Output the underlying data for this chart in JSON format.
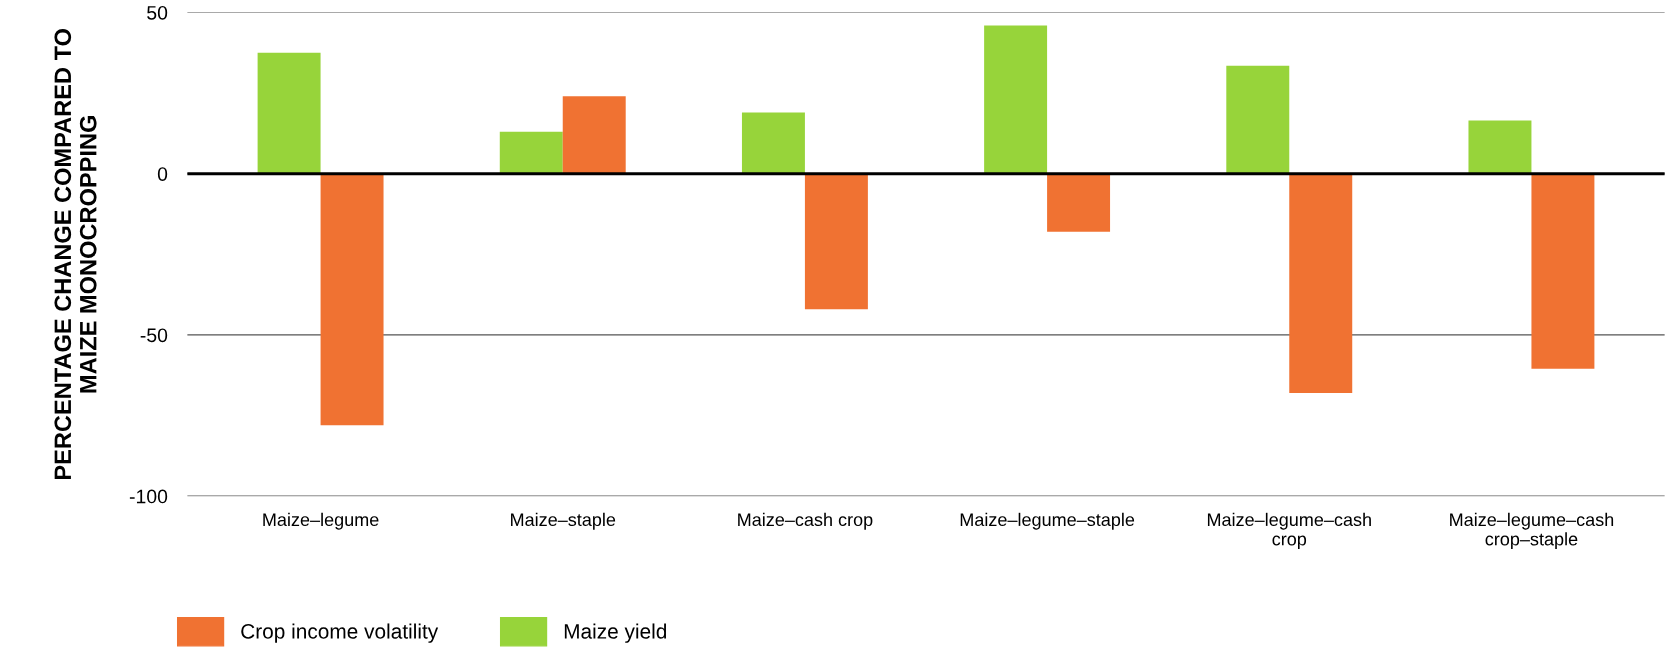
{
  "chart_data": {
    "type": "bar",
    "ylabel": "PERCENTAGE CHANGE COMPARED TO\nMAIZE MONOCROPPING",
    "categories": [
      "Maize–legume",
      "Maize–staple",
      "Maize–cash crop",
      "Maize–legume–staple",
      "Maize–legume–cash\ncrop",
      "Maize–legume–cash\ncrop–staple"
    ],
    "series": [
      {
        "name": "Maize yield",
        "color": "#97d43a",
        "values": [
          37.5,
          13,
          19,
          46,
          33.5,
          16.5
        ]
      },
      {
        "name": "Crop income volatility",
        "color": "#f07232",
        "values": [
          -78,
          24,
          -42,
          -18,
          -68,
          -60.5
        ]
      }
    ],
    "ylim": [
      -100,
      50
    ],
    "yticks": [
      -100,
      -50,
      0,
      50
    ],
    "grid": "y",
    "legend": "bottom left"
  }
}
